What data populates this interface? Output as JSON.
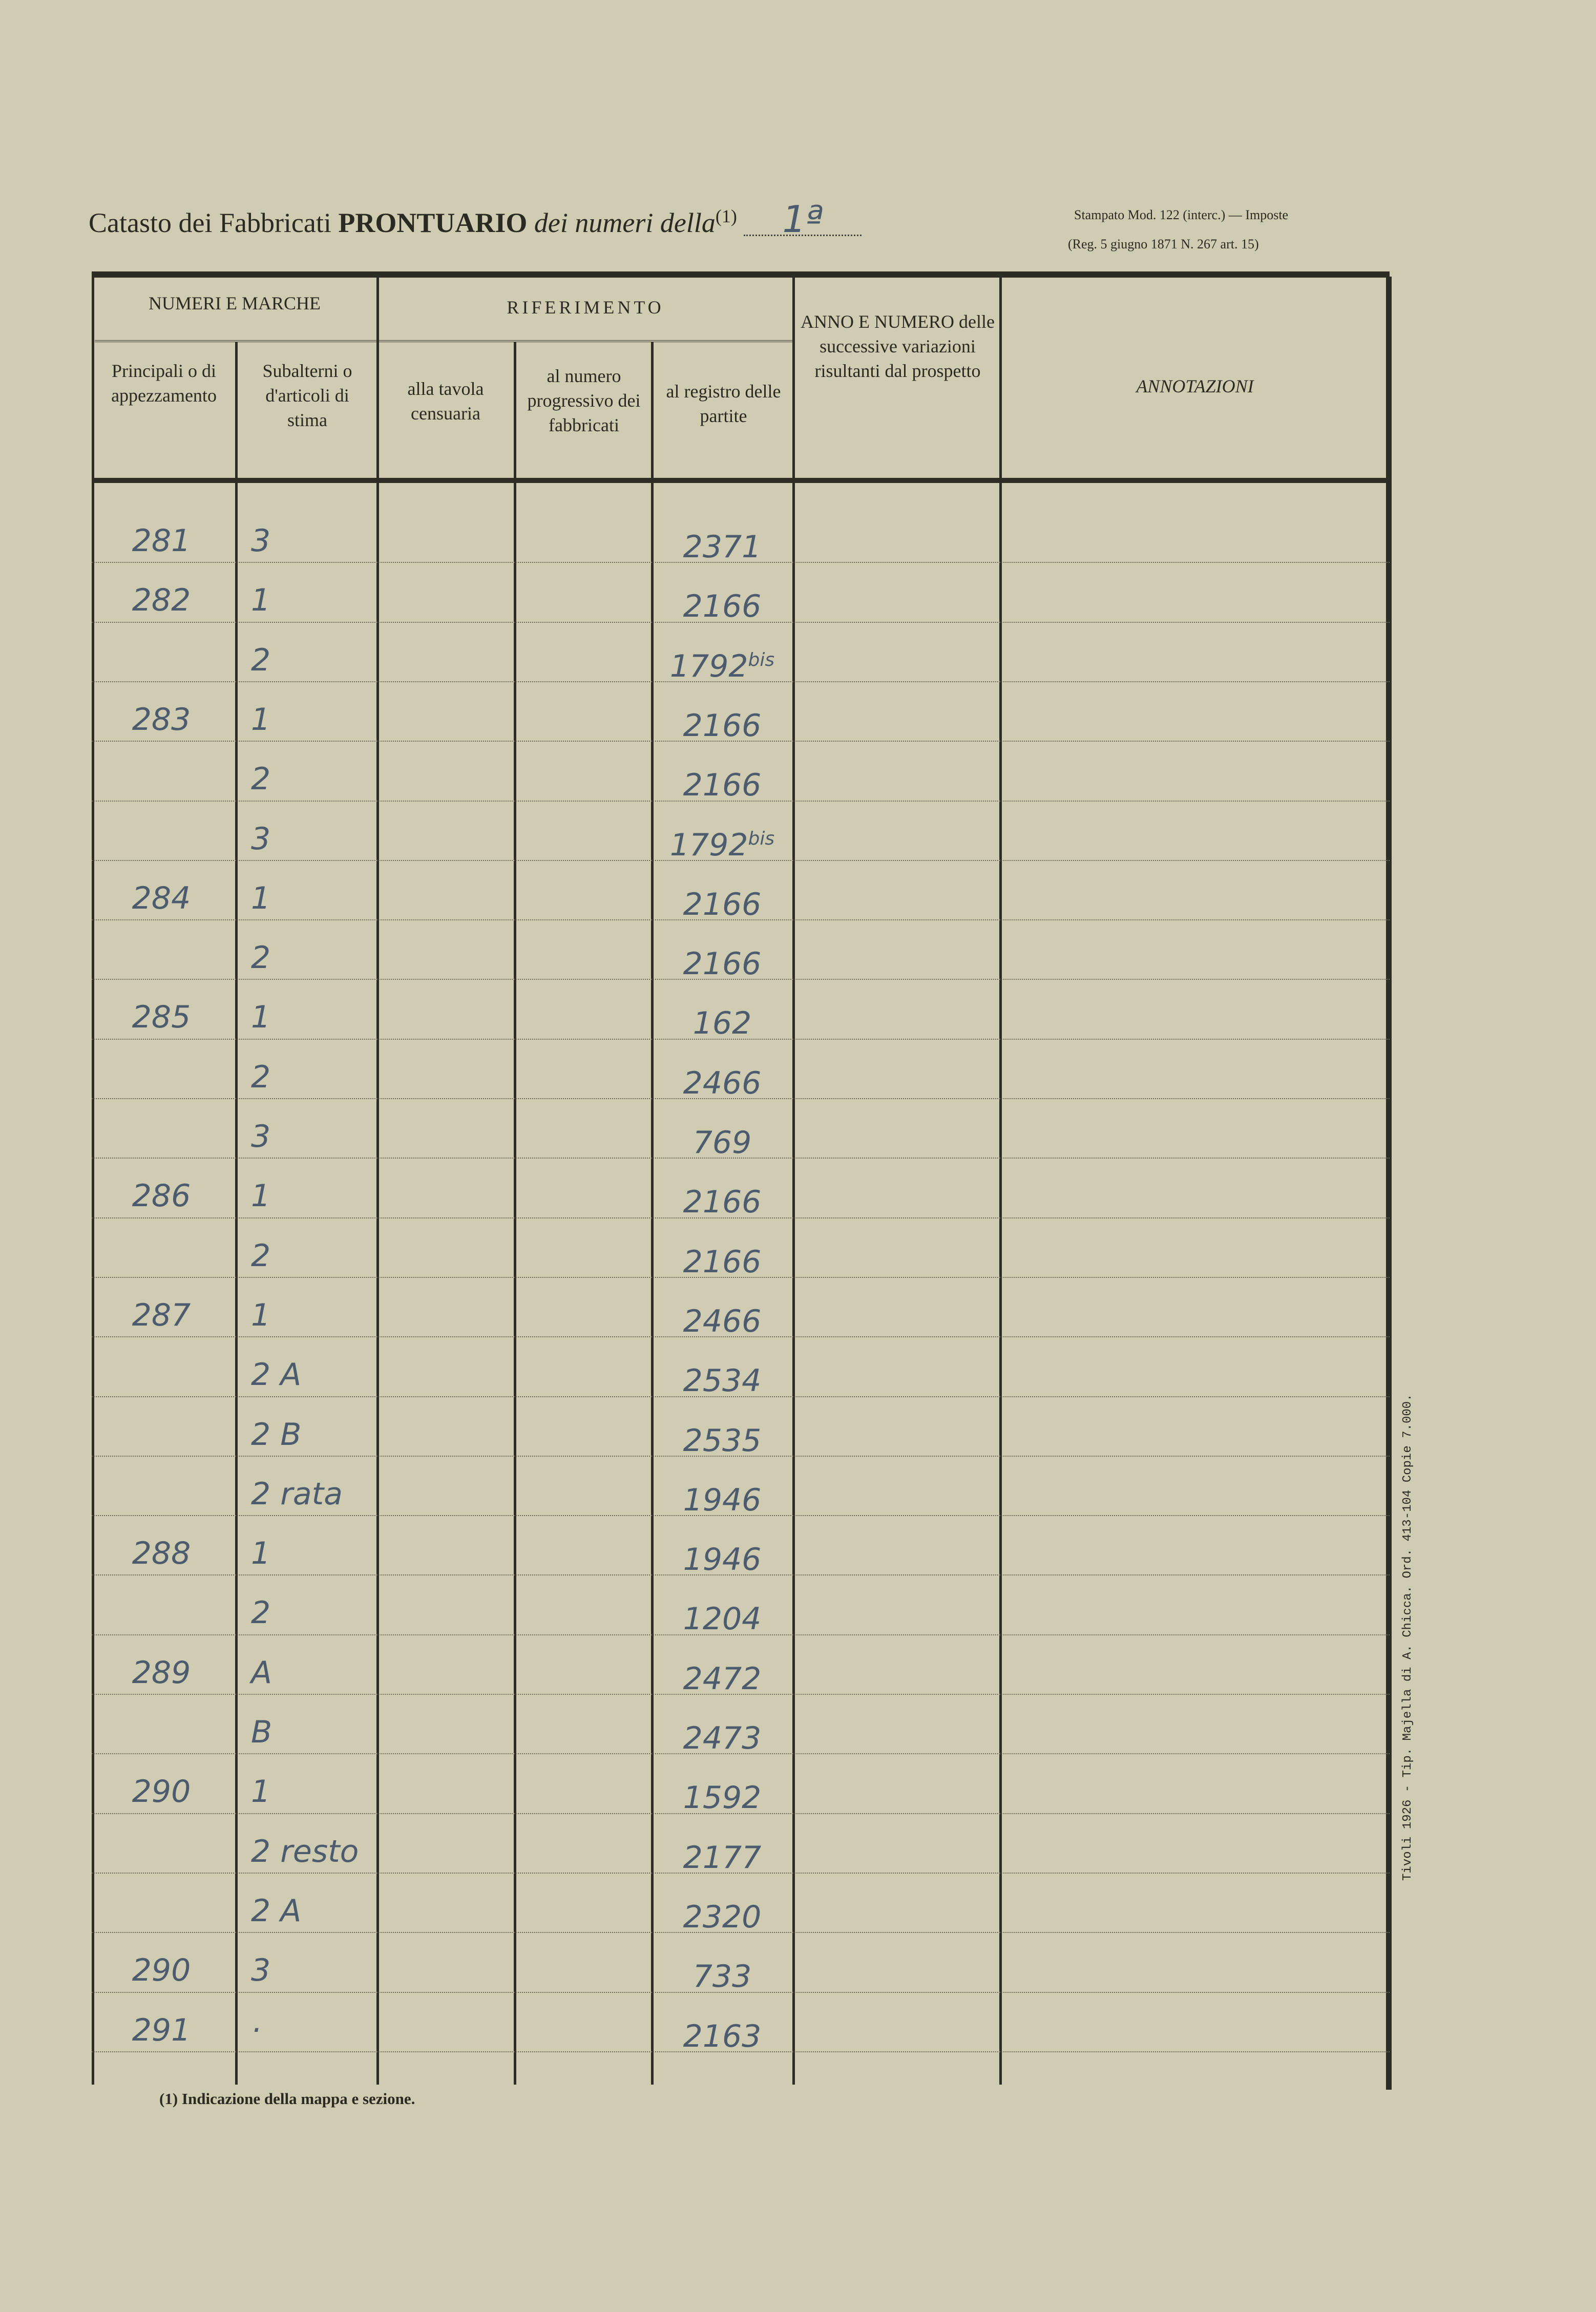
{
  "header": {
    "title_plain": "Catasto dei Fabbricati",
    "title_bold": "PRONTUARIO",
    "title_italic": "dei numeri della",
    "footnote_mark": "(1)",
    "mappa_handwritten": "1ª",
    "stamp_line1": "Stampato Mod. 122 (interc.) — Imposte",
    "stamp_line2": "(Reg. 5 giugno 1871 N. 267 art. 15)"
  },
  "columns": {
    "group_numeri": "NUMERI E MARCHE",
    "group_riferimento": "RIFERIMENTO",
    "principali": "Principali o di appezzamento",
    "subalterni": "Subalterni o d'articoli di stima",
    "tavola": "alla tavola censuaria",
    "progressivo": "al numero progressivo dei fabbricati",
    "registro": "al registro delle partite",
    "anno": "ANNO E NUMERO delle successive variazioni risultanti dal prospetto",
    "annotazioni": "ANNOTAZIONI"
  },
  "rows": [
    {
      "principale": "281",
      "subalterno": "3",
      "registro": "2371",
      "suffix": ""
    },
    {
      "principale": "282",
      "subalterno": "1",
      "registro": "2166",
      "suffix": ""
    },
    {
      "principale": "",
      "subalterno": "2",
      "registro": "1792",
      "suffix": "bis"
    },
    {
      "principale": "283",
      "subalterno": "1",
      "registro": "2166",
      "suffix": ""
    },
    {
      "principale": "",
      "subalterno": "2",
      "registro": "2166",
      "suffix": ""
    },
    {
      "principale": "",
      "subalterno": "3",
      "registro": "1792",
      "suffix": "bis"
    },
    {
      "principale": "284",
      "subalterno": "1",
      "registro": "2166",
      "suffix": ""
    },
    {
      "principale": "",
      "subalterno": "2",
      "registro": "2166",
      "suffix": ""
    },
    {
      "principale": "285",
      "subalterno": "1",
      "registro": "162",
      "suffix": ""
    },
    {
      "principale": "",
      "subalterno": "2",
      "registro": "2466",
      "suffix": ""
    },
    {
      "principale": "",
      "subalterno": "3",
      "registro": "769",
      "suffix": ""
    },
    {
      "principale": "286",
      "subalterno": "1",
      "registro": "2166",
      "suffix": ""
    },
    {
      "principale": "",
      "subalterno": "2",
      "registro": "2166",
      "suffix": ""
    },
    {
      "principale": "287",
      "subalterno": "1",
      "registro": "2466",
      "suffix": ""
    },
    {
      "principale": "",
      "subalterno": "2 A",
      "registro": "2534",
      "suffix": ""
    },
    {
      "principale": "",
      "subalterno": "2 B",
      "registro": "2535",
      "suffix": ""
    },
    {
      "principale": "",
      "subalterno": "2 rata",
      "registro": "1946",
      "suffix": ""
    },
    {
      "principale": "288",
      "subalterno": "1",
      "registro": "1946",
      "suffix": ""
    },
    {
      "principale": "",
      "subalterno": "2",
      "registro": "1204",
      "suffix": ""
    },
    {
      "principale": "289",
      "subalterno": "A",
      "registro": "2472",
      "suffix": ""
    },
    {
      "principale": "",
      "subalterno": "B",
      "registro": "2473",
      "suffix": ""
    },
    {
      "principale": "290",
      "subalterno": "1",
      "registro": "1592",
      "suffix": ""
    },
    {
      "principale": "",
      "subalterno": "2 resto",
      "registro": "2177",
      "suffix": ""
    },
    {
      "principale": "",
      "subalterno": "2 A",
      "registro": "2320",
      "suffix": ""
    },
    {
      "principale": "290",
      "subalterno": "3",
      "registro": "733",
      "suffix": ""
    },
    {
      "principale": "291",
      "subalterno": "·",
      "registro": "2163",
      "suffix": ""
    }
  ],
  "footnote": "(1) Indicazione della mappa e sezione.",
  "printer_note": "Tivoli 1926 - Tip. Majella di A. Chicca. Ord. 413-104 Copie 7.000."
}
